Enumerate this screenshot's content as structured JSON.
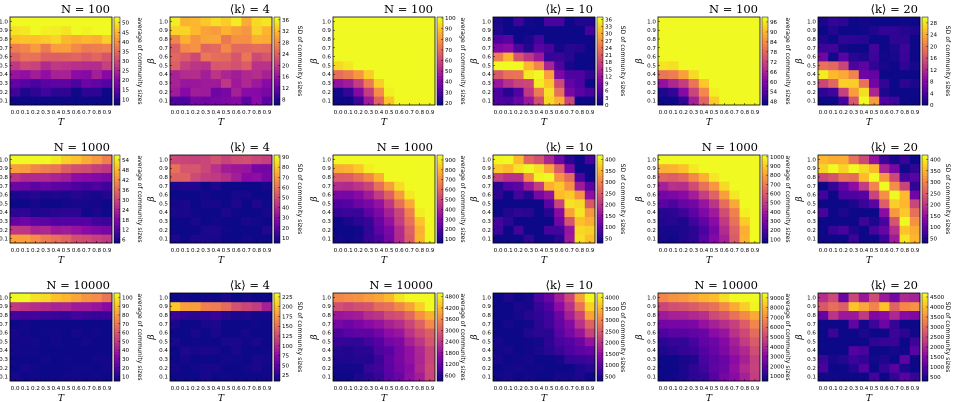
{
  "figure": {
    "colormap": "plasma",
    "colors": {
      "low": "#0d0887",
      "mid": "#cc4778",
      "high": "#f0f921"
    },
    "x_ticks": [
      "0.0",
      "0.1",
      "0.2",
      "0.3",
      "0.4",
      "0.5",
      "0.6",
      "0.7",
      "0.8",
      "0.9"
    ],
    "y_ticks": [
      "0.1",
      "0.2",
      "0.3",
      "0.4",
      "0.5",
      "0.6",
      "0.7",
      "0.8",
      "0.9",
      "1.0"
    ],
    "x_label": "T",
    "y_label": "β",
    "avg_cbar_label": "average of community sizes",
    "sd_cbar_label": "SD of community sizes"
  },
  "chart_data": [
    {
      "type": "heatmap",
      "row": 0,
      "col": 0,
      "title": "N = 100",
      "metric": "average of community sizes",
      "xlabel": "T",
      "ylabel": "β",
      "pattern": "avg",
      "colorbar_ticks": [
        "10",
        "15",
        "20",
        "25",
        "30",
        "35",
        "40",
        "45",
        "50"
      ],
      "colorbar_range": [
        7,
        53
      ]
    },
    {
      "type": "heatmap",
      "row": 0,
      "col": 1,
      "title": "⟨k⟩ = 4",
      "metric": "SD of community sizes",
      "xlabel": "T",
      "ylabel": "β",
      "pattern": "sd4",
      "colorbar_ticks": [
        "8",
        "12",
        "16",
        "20",
        "24",
        "28",
        "32",
        "36"
      ],
      "colorbar_range": [
        6,
        37
      ]
    },
    {
      "type": "heatmap",
      "row": 0,
      "col": 2,
      "title": "N = 100",
      "metric": "average of community sizes",
      "xlabel": "T",
      "ylabel": "β",
      "pattern": "avg_small_big",
      "colorbar_ticks": [
        "20",
        "30",
        "40",
        "50",
        "60",
        "70",
        "80",
        "90",
        "100"
      ],
      "colorbar_range": [
        18,
        101
      ]
    },
    {
      "type": "heatmap",
      "row": 0,
      "col": 3,
      "title": "⟨k⟩ = 10",
      "metric": "SD of community sizes",
      "xlabel": "T",
      "ylabel": "β",
      "pattern": "sd_band",
      "colorbar_ticks": [
        "0",
        "3",
        "6",
        "9",
        "12",
        "15",
        "18",
        "21",
        "24",
        "27",
        "30",
        "33",
        "36"
      ],
      "colorbar_range": [
        0,
        37
      ]
    },
    {
      "type": "heatmap",
      "row": 0,
      "col": 4,
      "title": "N = 100",
      "metric": "average of community sizes",
      "xlabel": "T",
      "ylabel": "β",
      "pattern": "avg_small_big",
      "colorbar_ticks": [
        "48",
        "54",
        "60",
        "66",
        "72",
        "78",
        "84",
        "90",
        "96"
      ],
      "colorbar_range": [
        46,
        99
      ]
    },
    {
      "type": "heatmap",
      "row": 0,
      "col": 5,
      "title": "⟨k⟩ = 20",
      "metric": "SD of community sizes",
      "xlabel": "T",
      "ylabel": "β",
      "pattern": "sd_band_low",
      "colorbar_ticks": [
        "0",
        "4",
        "8",
        "12",
        "16",
        "20",
        "24",
        "28"
      ],
      "colorbar_range": [
        0,
        30
      ]
    },
    {
      "type": "heatmap",
      "row": 1,
      "col": 0,
      "title": "N = 1000",
      "metric": "average of community sizes",
      "xlabel": "T",
      "ylabel": "β",
      "pattern": "avg_top",
      "colorbar_ticks": [
        "6",
        "12",
        "18",
        "24",
        "30",
        "36",
        "42",
        "48",
        "54"
      ],
      "colorbar_range": [
        4,
        57
      ]
    },
    {
      "type": "heatmap",
      "row": 1,
      "col": 1,
      "title": "⟨k⟩ = 4",
      "metric": "SD of community sizes",
      "xlabel": "T",
      "ylabel": "β",
      "pattern": "sd_top",
      "colorbar_ticks": [
        "10",
        "20",
        "30",
        "40",
        "50",
        "60",
        "70",
        "80",
        "90"
      ],
      "colorbar_range": [
        5,
        92
      ]
    },
    {
      "type": "heatmap",
      "row": 1,
      "col": 2,
      "title": "N = 1000",
      "metric": "average of community sizes",
      "xlabel": "T",
      "ylabel": "β",
      "pattern": "avg_corner",
      "colorbar_ticks": [
        "100",
        "200",
        "300",
        "400",
        "500",
        "600",
        "700",
        "800",
        "900"
      ],
      "colorbar_range": [
        60,
        950
      ]
    },
    {
      "type": "heatmap",
      "row": 1,
      "col": 3,
      "title": "⟨k⟩ = 10",
      "metric": "SD of community sizes",
      "xlabel": "T",
      "ylabel": "β",
      "pattern": "sd_arc",
      "colorbar_ticks": [
        "50",
        "100",
        "150",
        "200",
        "250",
        "300",
        "350",
        "400"
      ],
      "colorbar_range": [
        30,
        420
      ]
    },
    {
      "type": "heatmap",
      "row": 1,
      "col": 4,
      "title": "N = 1000",
      "metric": "average of community sizes",
      "xlabel": "T",
      "ylabel": "β",
      "pattern": "avg_corner",
      "colorbar_ticks": [
        "100",
        "200",
        "300",
        "400",
        "500",
        "600",
        "700",
        "800",
        "900",
        "1000"
      ],
      "colorbar_range": [
        60,
        1020
      ]
    },
    {
      "type": "heatmap",
      "row": 1,
      "col": 5,
      "title": "⟨k⟩ = 20",
      "metric": "SD of community sizes",
      "xlabel": "T",
      "ylabel": "β",
      "pattern": "sd_arc",
      "colorbar_ticks": [
        "50",
        "100",
        "150",
        "200",
        "250",
        "300",
        "350",
        "400"
      ],
      "colorbar_range": [
        30,
        420
      ]
    },
    {
      "type": "heatmap",
      "row": 2,
      "col": 0,
      "title": "N = 10000",
      "metric": "average of community sizes",
      "xlabel": "T",
      "ylabel": "β",
      "pattern": "avg_top_thin",
      "colorbar_ticks": [
        "10",
        "20",
        "30",
        "40",
        "50",
        "60",
        "70",
        "80",
        "90",
        "100"
      ],
      "colorbar_range": [
        5,
        105
      ]
    },
    {
      "type": "heatmap",
      "row": 2,
      "col": 1,
      "title": "⟨k⟩ = 4",
      "metric": "SD of community sizes",
      "xlabel": "T",
      "ylabel": "β",
      "pattern": "sd_top_thin",
      "colorbar_ticks": [
        "25",
        "50",
        "75",
        "100",
        "125",
        "150",
        "175",
        "200",
        "225"
      ],
      "colorbar_range": [
        10,
        235
      ]
    },
    {
      "type": "heatmap",
      "row": 2,
      "col": 2,
      "title": "N = 10000",
      "metric": "average of community sizes",
      "xlabel": "T",
      "ylabel": "β",
      "pattern": "avg_corner_dark",
      "colorbar_ticks": [
        "600",
        "1200",
        "1800",
        "2400",
        "3000",
        "3600",
        "4200",
        "4800"
      ],
      "colorbar_range": [
        300,
        5000
      ]
    },
    {
      "type": "heatmap",
      "row": 2,
      "col": 3,
      "title": "⟨k⟩ = 10",
      "metric": "SD of community sizes",
      "xlabel": "T",
      "ylabel": "β",
      "pattern": "sd_corner",
      "colorbar_ticks": [
        "500",
        "1000",
        "1500",
        "2000",
        "2500",
        "3000",
        "3500",
        "4000"
      ],
      "colorbar_range": [
        300,
        4200
      ]
    },
    {
      "type": "heatmap",
      "row": 2,
      "col": 4,
      "title": "N = 10000",
      "metric": "average of community sizes",
      "xlabel": "T",
      "ylabel": "β",
      "pattern": "avg_corner_dark",
      "colorbar_ticks": [
        "1000",
        "2000",
        "3000",
        "4000",
        "5000",
        "6000",
        "7000",
        "8000",
        "9000"
      ],
      "colorbar_range": [
        500,
        9500
      ]
    },
    {
      "type": "heatmap",
      "row": 2,
      "col": 5,
      "title": "⟨k⟩ = 20",
      "metric": "SD of community sizes",
      "xlabel": "T",
      "ylabel": "β",
      "pattern": "sd_top_band",
      "colorbar_ticks": [
        "500",
        "1000",
        "1500",
        "2000",
        "2500",
        "3000",
        "3500",
        "4000",
        "4500"
      ],
      "colorbar_range": [
        300,
        4700
      ]
    }
  ]
}
